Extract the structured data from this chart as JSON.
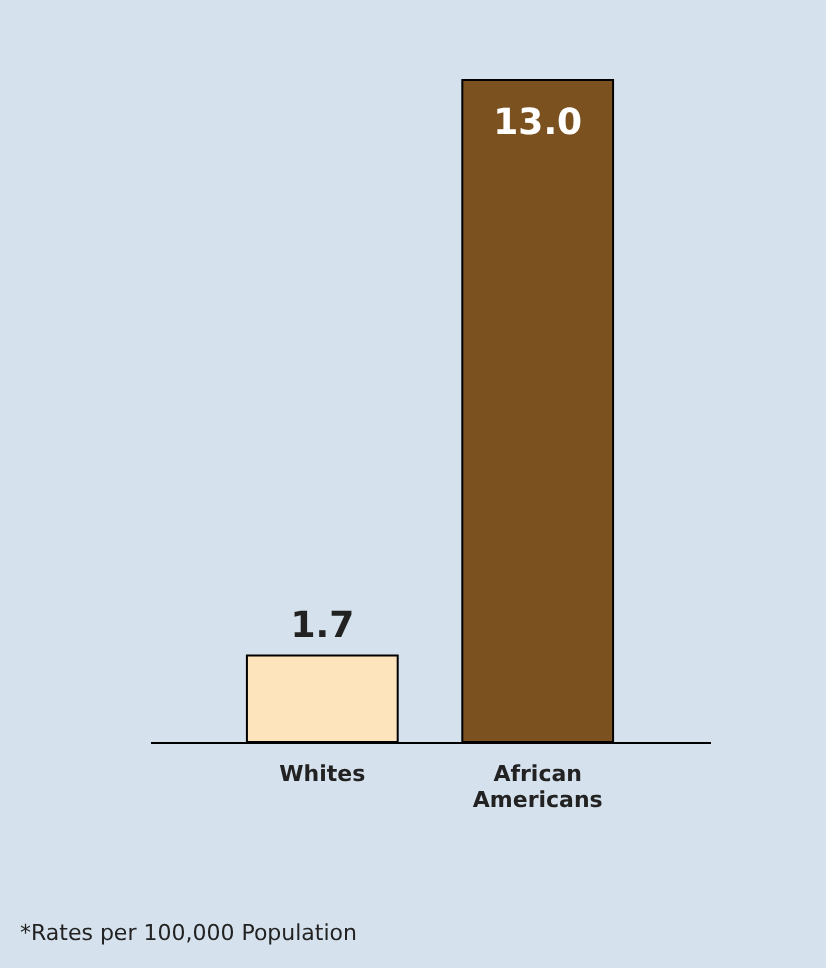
{
  "chart_data": {
    "type": "bar",
    "categories": [
      "Whites",
      "African Americans"
    ],
    "values": [
      1.7,
      13.0
    ],
    "value_labels": [
      "1.7",
      "13.0"
    ],
    "colors": [
      "#fde4bd",
      "#7b521f"
    ],
    "annotations": [
      "*Rates per 100,000 Population"
    ]
  }
}
